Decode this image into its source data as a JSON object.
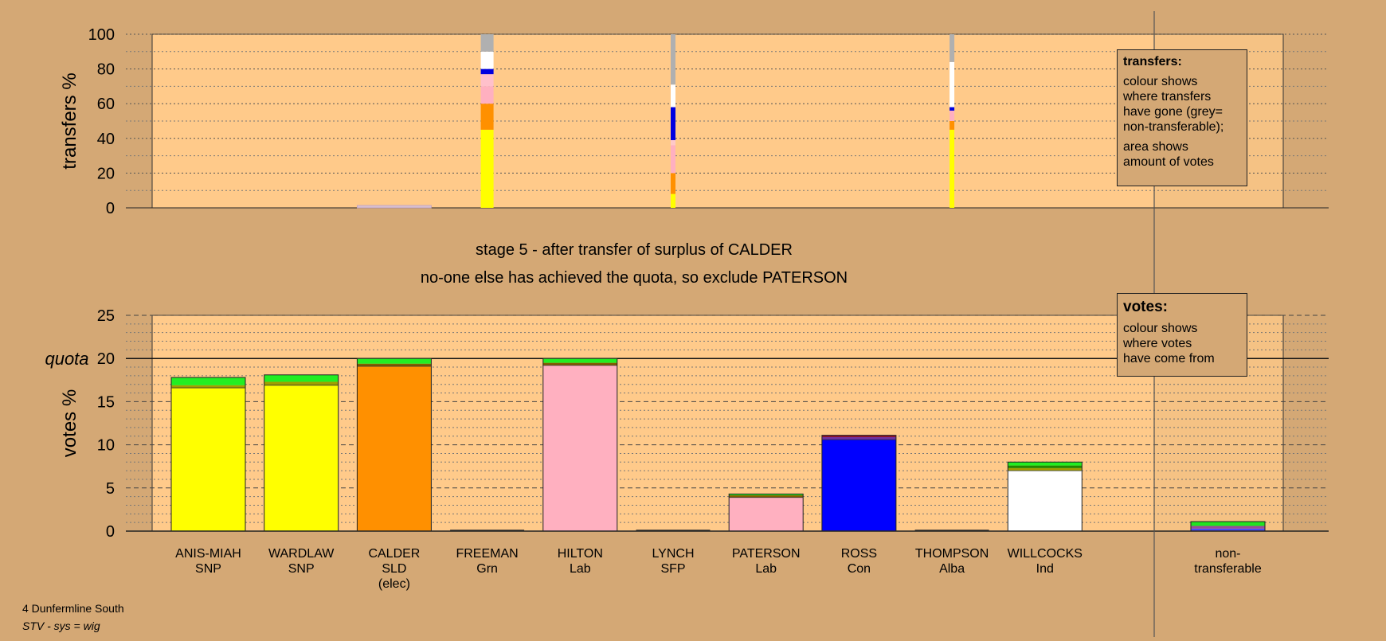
{
  "chart_data": [
    {
      "type": "bar",
      "name": "transfers",
      "ylabel": "transfers %",
      "ylim": [
        0,
        100
      ],
      "yticks": [
        0,
        20,
        40,
        60,
        80,
        100
      ],
      "categories": [
        "ANIS-MIAH",
        "WARDLAW",
        "CALDER",
        "FREEMAN",
        "HILTON",
        "LYNCH",
        "PATERSON",
        "ROSS",
        "THOMPSON",
        "WILLCOCKS"
      ],
      "transfers": [
        {
          "candidate": "CALDER",
          "faint": true,
          "segments": [
            {
              "v": 100,
              "color": "#d8c0d0"
            }
          ]
        },
        {
          "candidate": "FREEMAN",
          "segments": [
            {
              "v": 45,
              "color": "#ffff00"
            },
            {
              "v": 15,
              "color": "#ff9000"
            },
            {
              "v": 10,
              "color": "#ffb0c0"
            },
            {
              "v": 7,
              "color": "#ffc0cb"
            },
            {
              "v": 3,
              "color": "#0000e0"
            },
            {
              "v": 10,
              "color": "#ffffff"
            },
            {
              "v": 10,
              "color": "#b0b0b0"
            }
          ]
        },
        {
          "candidate": "LYNCH",
          "segments": [
            {
              "v": 8,
              "color": "#ffff00"
            },
            {
              "v": 12,
              "color": "#ff9000"
            },
            {
              "v": 16,
              "color": "#ffb0c0"
            },
            {
              "v": 3,
              "color": "#ffc8c8"
            },
            {
              "v": 19,
              "color": "#0000e0"
            },
            {
              "v": 13,
              "color": "#ffffff"
            },
            {
              "v": 29,
              "color": "#b0b0b0"
            }
          ]
        },
        {
          "candidate": "THOMPSON",
          "segments": [
            {
              "v": 45,
              "color": "#ffff00"
            },
            {
              "v": 5,
              "color": "#ff9000"
            },
            {
              "v": 6,
              "color": "#ffb0c0"
            },
            {
              "v": 2,
              "color": "#0000e0"
            },
            {
              "v": 26,
              "color": "#ffffff"
            },
            {
              "v": 16,
              "color": "#b0b0b0"
            }
          ]
        }
      ]
    },
    {
      "type": "bar",
      "name": "votes",
      "ylabel": "votes %",
      "ylim": [
        0,
        25
      ],
      "yticks": [
        0,
        5,
        10,
        15,
        20,
        25
      ],
      "quota": 20,
      "quota_label": "quota",
      "bars": [
        {
          "name": "ANIS-MIAH",
          "party": "SNP",
          "note": "",
          "total": 17.8,
          "segments": [
            {
              "v": 16.6,
              "color": "#ffff00"
            },
            {
              "v": 0.3,
              "color": "#a0a000"
            },
            {
              "v": 0.9,
              "color": "#22ee22"
            }
          ]
        },
        {
          "name": "WARDLAW",
          "party": "SNP",
          "note": "",
          "total": 18.1,
          "segments": [
            {
              "v": 16.9,
              "color": "#ffff00"
            },
            {
              "v": 0.4,
              "color": "#a0a000"
            },
            {
              "v": 0.8,
              "color": "#22ee22"
            }
          ]
        },
        {
          "name": "CALDER",
          "party": "SLD",
          "note": "(elec)",
          "total": 20,
          "segments": [
            {
              "v": 19.1,
              "color": "#ff9000"
            },
            {
              "v": 0.3,
              "color": "#806000"
            },
            {
              "v": 0.6,
              "color": "#22ee22"
            }
          ]
        },
        {
          "name": "FREEMAN",
          "party": "Grn",
          "note": "",
          "total": 0,
          "segments": []
        },
        {
          "name": "HILTON",
          "party": "Lab",
          "note": "",
          "total": 20,
          "segments": [
            {
              "v": 19.2,
              "color": "#ffb0c0"
            },
            {
              "v": 0.3,
              "color": "#806000"
            },
            {
              "v": 0.5,
              "color": "#22ee22"
            }
          ]
        },
        {
          "name": "LYNCH",
          "party": "SFP",
          "note": "",
          "total": 0,
          "segments": []
        },
        {
          "name": "PATERSON",
          "party": "Lab",
          "note": "",
          "total": 4.3,
          "segments": [
            {
              "v": 3.9,
              "color": "#ffb0c0"
            },
            {
              "v": 0.25,
              "color": "#806000"
            },
            {
              "v": 0.15,
              "color": "#22ee22"
            }
          ]
        },
        {
          "name": "ROSS",
          "party": "Con",
          "note": "",
          "total": 11.1,
          "segments": [
            {
              "v": 10.6,
              "color": "#0000ff"
            },
            {
              "v": 0.3,
              "color": "#7030a0"
            },
            {
              "v": 0.2,
              "color": "#800020"
            }
          ]
        },
        {
          "name": "THOMPSON",
          "party": "Alba",
          "note": "",
          "total": 0,
          "segments": []
        },
        {
          "name": "WILLCOCKS",
          "party": "Ind",
          "note": "",
          "total": 8.0,
          "segments": [
            {
              "v": 7.0,
              "color": "#ffffff"
            },
            {
              "v": 0.3,
              "color": "#a0a000"
            },
            {
              "v": 0.3,
              "color": "#228800"
            },
            {
              "v": 0.4,
              "color": "#22ee22"
            }
          ]
        }
      ],
      "nontransferable": {
        "label_1": "non-",
        "label_2": "transferable",
        "total": 1.1,
        "segments": [
          {
            "v": 0.3,
            "color": "#5050ff"
          },
          {
            "v": 0.3,
            "color": "#a050a0"
          },
          {
            "v": 0.5,
            "color": "#22ee22"
          }
        ]
      }
    }
  ],
  "stage_title": "stage 5 - after transfer of surplus of CALDER",
  "stage_subtitle": "no-one else has achieved the quota, so exclude PATERSON",
  "transfers_legend": {
    "title": "transfers:",
    "line1": "colour shows",
    "line2": "where transfers",
    "line3": "have gone (grey=",
    "line4": "non-transferable);",
    "line5": "area shows",
    "line6": "amount of votes"
  },
  "votes_legend": {
    "title": "votes:",
    "line1": "colour shows",
    "line2": "where votes",
    "line3": "have come from"
  },
  "footer": {
    "ward": "4 Dunfermline South",
    "system": "STV - sys = wig"
  },
  "colors": {
    "background": "#d4a875",
    "plot_area": "#ffca8a"
  }
}
